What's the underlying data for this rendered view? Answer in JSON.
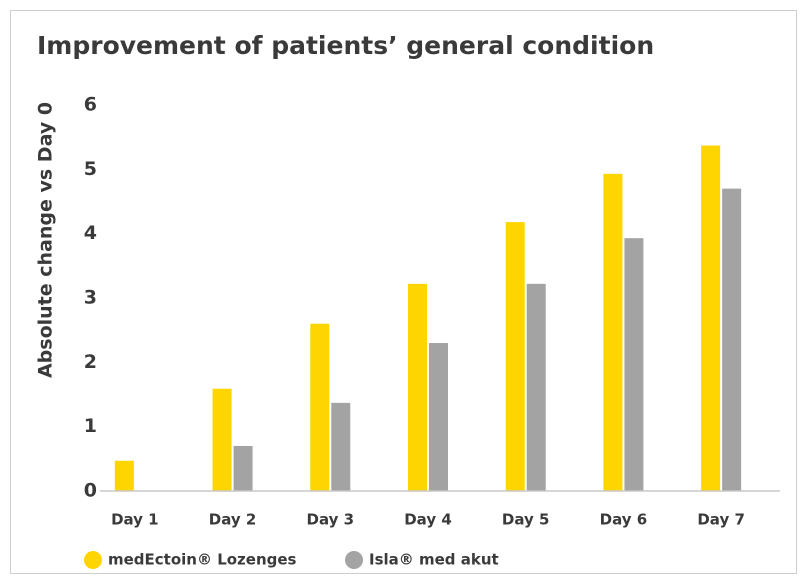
{
  "chart_data": {
    "type": "bar",
    "title": "Improvement of patients’ general condition",
    "y_label": "Absolute change vs Day 0",
    "categories": [
      "Day 1",
      "Day 2",
      "Day 3",
      "Day 4",
      "Day 5",
      "Day 6",
      "Day 7"
    ],
    "series": [
      {
        "name": "medEctoin® Lozenges",
        "color": "#ffd500",
        "values": [
          0.47,
          1.59,
          2.6,
          3.22,
          4.18,
          4.93,
          5.37
        ]
      },
      {
        "name": "Isla® med akut",
        "color": "#a3a3a3",
        "values": [
          0,
          0.7,
          1.37,
          2.3,
          3.22,
          3.93,
          4.7
        ]
      }
    ],
    "ylim": [
      0,
      6
    ],
    "yticks": [
      0,
      1,
      2,
      3,
      4,
      5,
      6
    ],
    "grid": false,
    "legend": "bottom-left"
  }
}
